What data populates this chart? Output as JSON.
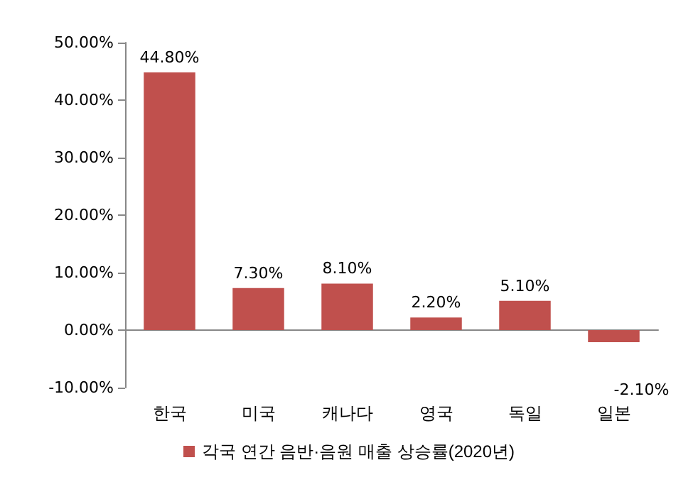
{
  "chart_data": {
    "type": "bar",
    "categories": [
      "한국",
      "미국",
      "캐나다",
      "영국",
      "독일",
      "일본"
    ],
    "series": [
      {
        "name": "각국 연간 음반·음원 매출 상승률(2020년)",
        "color": "#c0504d",
        "values": [
          44.8,
          7.3,
          8.1,
          2.2,
          5.1,
          -2.1
        ],
        "value_labels": [
          "44.80%",
          "7.30%",
          "8.10%",
          "2.20%",
          "5.10%",
          "-2.10%"
        ]
      }
    ],
    "ylim": [
      -10,
      50
    ],
    "yticks": [
      {
        "value": -10,
        "label": "-10.00%"
      },
      {
        "value": 0,
        "label": "0.00%"
      },
      {
        "value": 10,
        "label": "10.00%"
      },
      {
        "value": 20,
        "label": "20.00%"
      },
      {
        "value": 30,
        "label": "30.00%"
      },
      {
        "value": 40,
        "label": "40.00%"
      },
      {
        "value": 50,
        "label": "50.00%"
      }
    ],
    "legend": "bottom"
  }
}
